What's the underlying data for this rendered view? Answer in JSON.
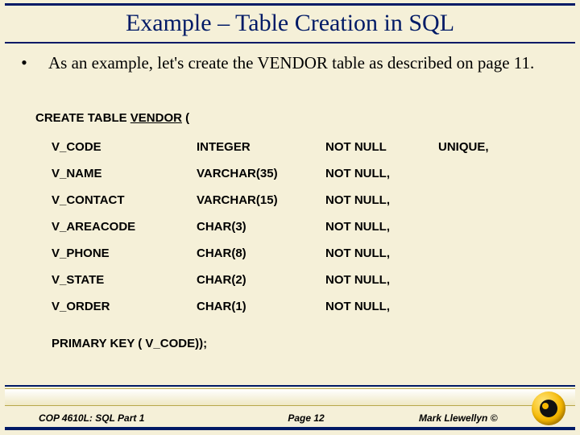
{
  "title": "Example – Table Creation in SQL",
  "bullet": {
    "mark": "•",
    "text": "As an example, let's create the VENDOR table as described on page 11."
  },
  "create": {
    "prefix": "CREATE TABLE ",
    "tableName": "VENDOR",
    "suffix": " ("
  },
  "columns": [
    {
      "name": "V_CODE",
      "type": "INTEGER",
      "null": "NOT NULL",
      "extra": "UNIQUE,"
    },
    {
      "name": "V_NAME",
      "type": "VARCHAR(35)",
      "null": "NOT NULL,",
      "extra": ""
    },
    {
      "name": "V_CONTACT",
      "type": "VARCHAR(15)",
      "null": "NOT NULL,",
      "extra": ""
    },
    {
      "name": "V_AREACODE",
      "type": "CHAR(3)",
      "null": "NOT NULL,",
      "extra": ""
    },
    {
      "name": "V_PHONE",
      "type": "CHAR(8)",
      "null": "NOT NULL,",
      "extra": ""
    },
    {
      "name": "V_STATE",
      "type": "CHAR(2)",
      "null": "NOT NULL,",
      "extra": ""
    },
    {
      "name": "V_ORDER",
      "type": "CHAR(1)",
      "null": "NOT NULL,",
      "extra": ""
    }
  ],
  "primaryKey": "PRIMARY KEY ( V_CODE));",
  "footer": {
    "left": "COP 4610L: SQL Part 1",
    "center": "Page 12",
    "right": "Mark Llewellyn ©"
  },
  "colors": {
    "background": "#f5f0d8",
    "rule": "#001a66",
    "text": "#000000"
  }
}
